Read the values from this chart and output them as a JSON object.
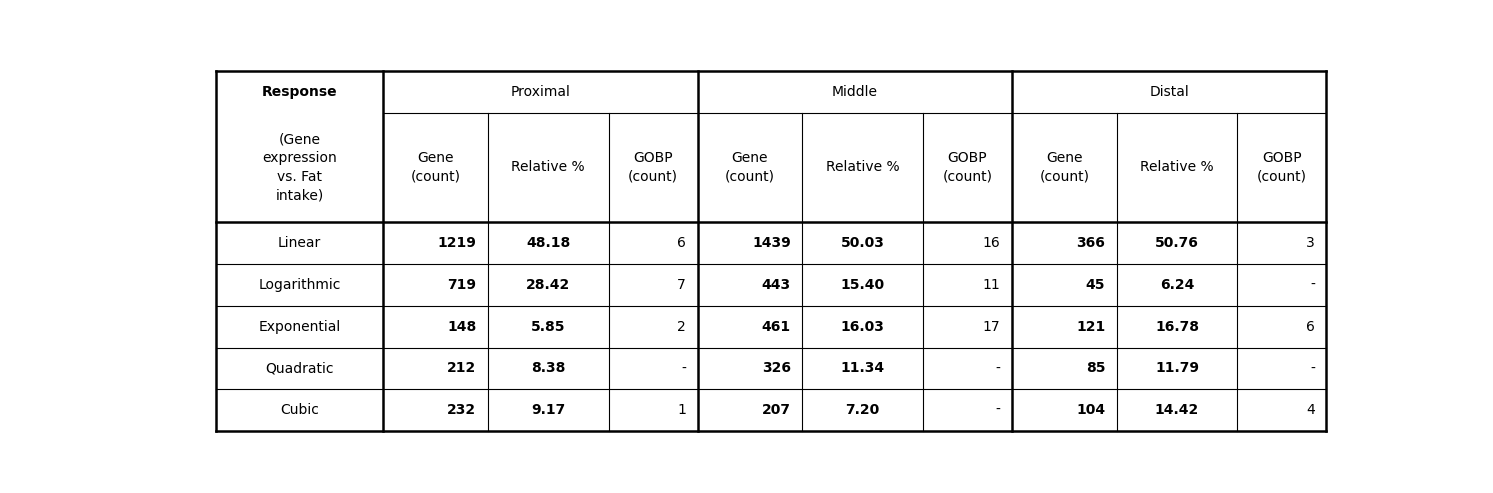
{
  "header_row1_col0": "Response\n(Gene\nexpression\nvs. Fat\nintake)",
  "header_row1_col0_bold_first_line": true,
  "group_labels": [
    "Proximal",
    "Middle",
    "Distal"
  ],
  "group_col_starts": [
    1,
    4,
    7
  ],
  "group_col_ends": [
    3,
    6,
    9
  ],
  "subheaders": [
    "Gene\n(count)",
    "Relative %",
    "GOBP\n(count)",
    "Gene\n(count)",
    "Relative %",
    "GOBP\n(count)",
    "Gene\n(count)",
    "Relative %",
    "GOBP\n(count)"
  ],
  "rows": [
    [
      "Linear",
      "1219",
      "48.18",
      "6",
      "1439",
      "50.03",
      "16",
      "366",
      "50.76",
      "3"
    ],
    [
      "Logarithmic",
      "719",
      "28.42",
      "7",
      "443",
      "15.40",
      "11",
      "45",
      "6.24",
      "-"
    ],
    [
      "Exponential",
      "148",
      "5.85",
      "2",
      "461",
      "16.03",
      "17",
      "121",
      "16.78",
      "6"
    ],
    [
      "Quadratic",
      "212",
      "8.38",
      "-",
      "326",
      "11.34",
      "-",
      "85",
      "11.79",
      "-"
    ],
    [
      "Cubic",
      "232",
      "9.17",
      "1",
      "207",
      "7.20",
      "-",
      "104",
      "14.42",
      "4"
    ]
  ],
  "bold_data_cols": [
    1,
    2,
    4,
    5,
    7,
    8
  ],
  "col_alignments": [
    "center",
    "right",
    "center",
    "right",
    "right",
    "center",
    "right",
    "right",
    "center",
    "right"
  ],
  "col_widths_rel": [
    1.6,
    1.0,
    1.15,
    0.85,
    1.0,
    1.15,
    0.85,
    1.0,
    1.15,
    0.85
  ],
  "background_color": "#ffffff",
  "line_color": "#000000",
  "header_fontsize": 10,
  "data_fontsize": 10
}
